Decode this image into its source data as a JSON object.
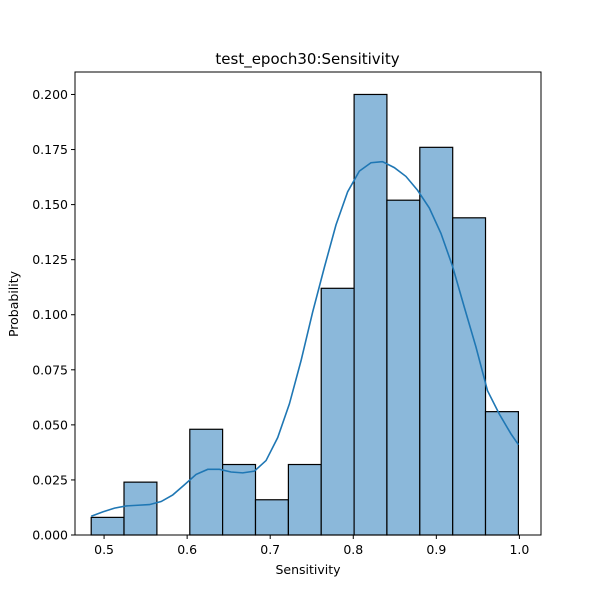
{
  "chart_data": {
    "type": "bar",
    "title": "test_epoch30:Sensitivity",
    "xlabel": "Sensitivity",
    "ylabel": "Probability",
    "xlim": [
      0.465,
      1.026
    ],
    "ylim": [
      0,
      0.2102
    ],
    "xticks": [
      0.5,
      0.6,
      0.7,
      0.8,
      0.9,
      1.0
    ],
    "xtick_labels": [
      "0.5",
      "0.6",
      "0.7",
      "0.8",
      "0.9",
      "1.0"
    ],
    "yticks": [
      0,
      0.025,
      0.05,
      0.075,
      0.1,
      0.125,
      0.15,
      0.175,
      0.2
    ],
    "ytick_labels": [
      "0.000",
      "0.025",
      "0.050",
      "0.075",
      "0.100",
      "0.125",
      "0.150",
      "0.175",
      "0.200"
    ],
    "grid": false,
    "bins": [
      {
        "x0": 0.4845,
        "x1": 0.524,
        "value": 0.008
      },
      {
        "x0": 0.524,
        "x1": 0.5636,
        "value": 0.024
      },
      {
        "x0": 0.5636,
        "x1": 0.6032,
        "value": 0.0
      },
      {
        "x0": 0.6032,
        "x1": 0.6427,
        "value": 0.048
      },
      {
        "x0": 0.6427,
        "x1": 0.6823,
        "value": 0.032
      },
      {
        "x0": 0.6823,
        "x1": 0.7219,
        "value": 0.016
      },
      {
        "x0": 0.7219,
        "x1": 0.7614,
        "value": 0.032
      },
      {
        "x0": 0.7614,
        "x1": 0.801,
        "value": 0.112
      },
      {
        "x0": 0.801,
        "x1": 0.8405,
        "value": 0.2
      },
      {
        "x0": 0.8405,
        "x1": 0.8801,
        "value": 0.152
      },
      {
        "x0": 0.8801,
        "x1": 0.9197,
        "value": 0.176
      },
      {
        "x0": 0.9197,
        "x1": 0.9592,
        "value": 0.144
      },
      {
        "x0": 0.9592,
        "x1": 0.9988,
        "value": 0.056
      }
    ],
    "kde": {
      "x": [
        0.4845,
        0.4985,
        0.5126,
        0.5266,
        0.5406,
        0.5547,
        0.5687,
        0.5827,
        0.5968,
        0.6108,
        0.6248,
        0.6389,
        0.6529,
        0.6669,
        0.681,
        0.695,
        0.709,
        0.7231,
        0.7371,
        0.7511,
        0.7652,
        0.7792,
        0.7932,
        0.8073,
        0.8213,
        0.8353,
        0.8494,
        0.8634,
        0.8774,
        0.8915,
        0.9055,
        0.9195,
        0.9336,
        0.9476,
        0.9616,
        0.9757,
        0.9897,
        0.9988
      ],
      "y": [
        0.0085,
        0.0105,
        0.0122,
        0.0132,
        0.0135,
        0.0138,
        0.0152,
        0.0182,
        0.0228,
        0.0275,
        0.0298,
        0.0298,
        0.0286,
        0.0282,
        0.029,
        0.0338,
        0.0442,
        0.0595,
        0.0791,
        0.1012,
        0.1215,
        0.1408,
        0.1558,
        0.1652,
        0.169,
        0.1695,
        0.1668,
        0.1628,
        0.1565,
        0.1485,
        0.137,
        0.122,
        0.1035,
        0.0855,
        0.0655,
        0.055,
        0.046,
        0.041
      ]
    },
    "colors": {
      "bar_fill": "#8bb8da",
      "bar_edge": "#000000",
      "kde_line": "#1f77b4"
    }
  }
}
